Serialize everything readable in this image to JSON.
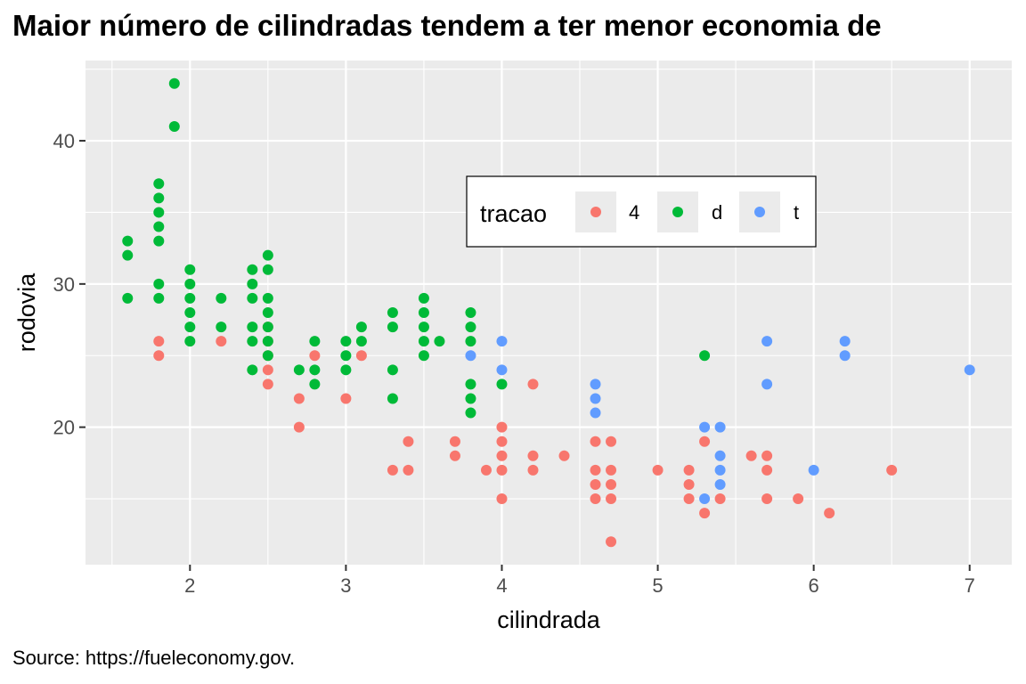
{
  "title": "Maior número de cilindradas tendem a ter menor economia de",
  "caption": "Source: https://fueleconomy.gov.",
  "chart_data": {
    "type": "scatter",
    "xlabel": "cilindrada",
    "ylabel": "rodovia",
    "xlim": [
      1.33,
      7.27
    ],
    "ylim": [
      10.4,
      45.6
    ],
    "xticks": [
      2,
      3,
      4,
      5,
      6,
      7
    ],
    "yticks": [
      20,
      30,
      40
    ],
    "grid": true,
    "legend": {
      "title": "tracao",
      "placement": "inside-top-center",
      "entries": [
        {
          "label": "4",
          "color": "#F8766D"
        },
        {
          "label": "d",
          "color": "#00BA38"
        },
        {
          "label": "t",
          "color": "#619CFF"
        }
      ]
    },
    "series": [
      {
        "name": "4",
        "color": "#F8766D",
        "points": [
          [
            1.8,
            26
          ],
          [
            1.8,
            25
          ],
          [
            2.2,
            26
          ],
          [
            2.5,
            27
          ],
          [
            2.5,
            26
          ],
          [
            2.5,
            25
          ],
          [
            2.5,
            24
          ],
          [
            2.5,
            23
          ],
          [
            2.7,
            22
          ],
          [
            2.7,
            20
          ],
          [
            2.8,
            25
          ],
          [
            3.0,
            22
          ],
          [
            3.1,
            25
          ],
          [
            3.3,
            17
          ],
          [
            3.4,
            19
          ],
          [
            3.4,
            17
          ],
          [
            3.7,
            19
          ],
          [
            3.7,
            18
          ],
          [
            3.9,
            17
          ],
          [
            4.0,
            20
          ],
          [
            4.0,
            19
          ],
          [
            4.0,
            18
          ],
          [
            4.0,
            17
          ],
          [
            4.0,
            15
          ],
          [
            4.2,
            23
          ],
          [
            4.2,
            18
          ],
          [
            4.2,
            17
          ],
          [
            4.4,
            18
          ],
          [
            4.6,
            19
          ],
          [
            4.6,
            17
          ],
          [
            4.6,
            16
          ],
          [
            4.6,
            15
          ],
          [
            4.7,
            19
          ],
          [
            4.7,
            17
          ],
          [
            4.7,
            16
          ],
          [
            4.7,
            15
          ],
          [
            4.7,
            12
          ],
          [
            5.0,
            17
          ],
          [
            5.2,
            17
          ],
          [
            5.2,
            16
          ],
          [
            5.2,
            15
          ],
          [
            5.3,
            19
          ],
          [
            5.3,
            14
          ],
          [
            5.4,
            15
          ],
          [
            5.6,
            18
          ],
          [
            5.7,
            18
          ],
          [
            5.7,
            17
          ],
          [
            5.7,
            15
          ],
          [
            5.9,
            15
          ],
          [
            6.1,
            14
          ],
          [
            6.5,
            17
          ]
        ]
      },
      {
        "name": "d",
        "color": "#00BA38",
        "points": [
          [
            1.6,
            33
          ],
          [
            1.6,
            32
          ],
          [
            1.6,
            29
          ],
          [
            1.8,
            37
          ],
          [
            1.8,
            36
          ],
          [
            1.8,
            35
          ],
          [
            1.8,
            34
          ],
          [
            1.8,
            33
          ],
          [
            1.8,
            30
          ],
          [
            1.8,
            29
          ],
          [
            1.9,
            44
          ],
          [
            1.9,
            41
          ],
          [
            2.0,
            31
          ],
          [
            2.0,
            30
          ],
          [
            2.0,
            29
          ],
          [
            2.0,
            28
          ],
          [
            2.0,
            27
          ],
          [
            2.0,
            26
          ],
          [
            2.2,
            29
          ],
          [
            2.2,
            27
          ],
          [
            2.4,
            31
          ],
          [
            2.4,
            30
          ],
          [
            2.4,
            29
          ],
          [
            2.4,
            27
          ],
          [
            2.4,
            26
          ],
          [
            2.4,
            24
          ],
          [
            2.5,
            32
          ],
          [
            2.5,
            31
          ],
          [
            2.5,
            29
          ],
          [
            2.5,
            28
          ],
          [
            2.5,
            27
          ],
          [
            2.5,
            26
          ],
          [
            2.5,
            25
          ],
          [
            2.7,
            24
          ],
          [
            2.8,
            26
          ],
          [
            2.8,
            24
          ],
          [
            2.8,
            23
          ],
          [
            3.0,
            26
          ],
          [
            3.0,
            25
          ],
          [
            3.0,
            24
          ],
          [
            3.1,
            27
          ],
          [
            3.1,
            26
          ],
          [
            3.3,
            28
          ],
          [
            3.3,
            27
          ],
          [
            3.3,
            24
          ],
          [
            3.3,
            22
          ],
          [
            3.5,
            29
          ],
          [
            3.5,
            28
          ],
          [
            3.5,
            27
          ],
          [
            3.5,
            26
          ],
          [
            3.5,
            25
          ],
          [
            3.6,
            26
          ],
          [
            3.8,
            28
          ],
          [
            3.8,
            27
          ],
          [
            3.8,
            26
          ],
          [
            3.8,
            23
          ],
          [
            3.8,
            22
          ],
          [
            3.8,
            21
          ],
          [
            4.0,
            23
          ],
          [
            5.3,
            25
          ]
        ]
      },
      {
        "name": "t",
        "color": "#619CFF",
        "points": [
          [
            3.8,
            25
          ],
          [
            4.0,
            26
          ],
          [
            4.0,
            24
          ],
          [
            4.6,
            23
          ],
          [
            4.6,
            22
          ],
          [
            4.6,
            21
          ],
          [
            5.3,
            20
          ],
          [
            5.3,
            15
          ],
          [
            5.4,
            20
          ],
          [
            5.4,
            18
          ],
          [
            5.4,
            17
          ],
          [
            5.4,
            16
          ],
          [
            5.7,
            26
          ],
          [
            5.7,
            23
          ],
          [
            6.0,
            17
          ],
          [
            6.2,
            26
          ],
          [
            6.2,
            25
          ],
          [
            7.0,
            24
          ]
        ]
      }
    ]
  }
}
